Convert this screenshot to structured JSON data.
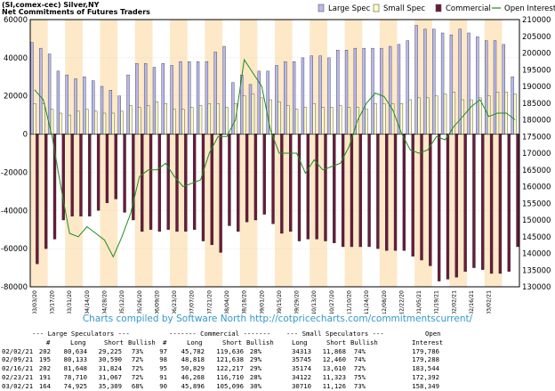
{
  "header": {
    "line1": "(SI,comex-cec) Silver,NY",
    "line2": "Net Commitments of Futures Traders"
  },
  "legend": [
    {
      "label": "Large Spec",
      "color": "#b8b8f0"
    },
    {
      "label": "Small Spec",
      "color": "#ffffc8"
    },
    {
      "label": "Commercial",
      "color": "#6b1a3c"
    },
    {
      "label": "Open Interest",
      "color": "#1e8c1e"
    }
  ],
  "credit": "Charts compiled by Software North  http://cotpricecharts.com/commitmentscurrent/",
  "chart_data": {
    "type": "bar",
    "left_axis": {
      "min": -80000,
      "max": 60000,
      "ticks": [
        "60000",
        "40000",
        "20000",
        "0",
        "-20000",
        "-40000",
        "-60000",
        "-80000"
      ]
    },
    "right_axis": {
      "min": 130000,
      "max": 210000,
      "ticks": [
        "210000",
        "205000",
        "200000",
        "195000",
        "190000",
        "185000",
        "180000",
        "175000",
        "170000",
        "165000",
        "160000",
        "155000",
        "150000",
        "145000",
        "140000",
        "135000",
        "130000"
      ]
    },
    "dates": [
      "03/03/20",
      "03/17/20",
      "03/31/20",
      "04/14/20",
      "04/28/20",
      "05/12/20",
      "05/26/20",
      "06/09/20",
      "06/23/20",
      "07/07/20",
      "07/21/20",
      "08/04/20",
      "08/18/20",
      "09/01/20",
      "09/15/20",
      "09/29/20",
      "10/13/20",
      "10/27/20",
      "11/10/20",
      "11/24/20",
      "12/08/20",
      "12/22/20",
      "01/05/21",
      "01/19/21",
      "02/02/21",
      "02/16/21",
      "03/02/21"
    ],
    "large_spec": [
      48000,
      45000,
      42000,
      33000,
      31000,
      29000,
      30000,
      28000,
      25000,
      23000,
      20000,
      31000,
      37000,
      37000,
      35000,
      37000,
      36000,
      38000,
      38000,
      38000,
      38000,
      43000,
      46000,
      27000,
      31000,
      26000,
      33000,
      33000,
      36000,
      38000,
      38000,
      40000,
      41000,
      41000,
      40000,
      44000,
      44000,
      45000,
      45000,
      45000,
      45000,
      46000,
      47000,
      49000,
      57000,
      55000,
      55000,
      53000,
      52000,
      55000,
      53000,
      51000,
      49000,
      49000,
      47000,
      30000
    ],
    "small_spec": [
      16000,
      16000,
      13000,
      11000,
      10000,
      12000,
      13000,
      12000,
      11000,
      11000,
      12000,
      15000,
      14000,
      15000,
      17000,
      16000,
      13000,
      13000,
      14000,
      15000,
      16000,
      16000,
      14000,
      16000,
      20000,
      21000,
      19000,
      18000,
      17000,
      15000,
      13000,
      14000,
      16000,
      14000,
      14000,
      15000,
      14000,
      14000,
      13000,
      16000,
      16000,
      16000,
      16000,
      18000,
      19000,
      19000,
      20000,
      21000,
      22000,
      18000,
      18000,
      19000,
      20000,
      22000,
      22000,
      21000
    ],
    "commercial": [
      -68000,
      -60000,
      -55000,
      -45000,
      -43000,
      -43000,
      -43000,
      -40000,
      -36000,
      -34000,
      -41000,
      -45000,
      -51000,
      -50000,
      -51000,
      -50000,
      -51000,
      -51000,
      -50000,
      -56000,
      -58000,
      -62000,
      -48000,
      -51000,
      -46000,
      -45000,
      -42000,
      -47000,
      -52000,
      -51000,
      -56000,
      -55000,
      -55000,
      -56000,
      -57000,
      -59000,
      -59000,
      -59000,
      -59000,
      -60000,
      -61000,
      -61000,
      -61000,
      -64000,
      -66000,
      -69000,
      -77000,
      -76000,
      -75000,
      -72000,
      -70000,
      -71000,
      -73000,
      -73000,
      -72000,
      -59000
    ],
    "open_interest": [
      189000,
      186000,
      175000,
      160000,
      146000,
      145000,
      148000,
      146000,
      144000,
      139000,
      145000,
      152000,
      163000,
      165000,
      165000,
      167000,
      163000,
      160000,
      161000,
      162000,
      170000,
      175000,
      175000,
      180000,
      198000,
      194000,
      190000,
      177000,
      170000,
      170000,
      170000,
      164000,
      168000,
      165000,
      166000,
      167000,
      172000,
      180000,
      185000,
      188000,
      187000,
      183000,
      176000,
      171000,
      170000,
      171000,
      175000,
      174000,
      178000,
      181000,
      184000,
      186000,
      181000,
      182000,
      182000,
      180000
    ]
  },
  "table": {
    "group_headers": [
      "--- Large Speculators ---",
      "------- Commercial -------",
      "--- Small Speculators ---",
      "Open"
    ],
    "col_headers": [
      "#",
      "Long",
      "Short",
      "Bullish",
      "#",
      "Long",
      "Short",
      "Bullish",
      "Long",
      "Short",
      "Bullish",
      "Interest"
    ],
    "rows": [
      {
        "date": "02/02/21",
        "ls_n": "202",
        "ls_long": "80,634",
        "ls_short": "29,225",
        "ls_bull": "73%",
        "c_n": "97",
        "c_long": "45,782",
        "c_short": "119,636",
        "c_bull": "28%",
        "ss_long": "34313",
        "ss_short": "11,868",
        "ss_bull": "74%",
        "oi": "179,786"
      },
      {
        "date": "02/09/21",
        "ls_n": "195",
        "ls_long": "80,133",
        "ls_short": "30,590",
        "ls_bull": "72%",
        "c_n": "98",
        "c_long": "48,818",
        "c_short": "121,638",
        "c_bull": "29%",
        "ss_long": "35745",
        "ss_short": "12,460",
        "ss_bull": "74%",
        "oi": "179,288"
      },
      {
        "date": "02/16/21",
        "ls_n": "202",
        "ls_long": "81,648",
        "ls_short": "31,824",
        "ls_bull": "72%",
        "c_n": "95",
        "c_long": "50,829",
        "c_short": "122,217",
        "c_bull": "29%",
        "ss_long": "35174",
        "ss_short": "13,610",
        "ss_bull": "72%",
        "oi": "183,544"
      },
      {
        "date": "02/23/21",
        "ls_n": "191",
        "ls_long": "78,710",
        "ls_short": "31,067",
        "ls_bull": "72%",
        "c_n": "91",
        "c_long": "46,268",
        "c_short": "116,710",
        "c_bull": "28%",
        "ss_long": "34122",
        "ss_short": "11,323",
        "ss_bull": "75%",
        "oi": "172,392"
      },
      {
        "date": "03/02/21",
        "ls_n": "164",
        "ls_long": "74,925",
        "ls_short": "35,309",
        "ls_bull": "68%",
        "c_n": "90",
        "c_long": "45,896",
        "c_short": "105,096",
        "c_bull": "30%",
        "ss_long": "30710",
        "ss_short": "11,126",
        "ss_bull": "73%",
        "oi": "158,349"
      }
    ]
  }
}
